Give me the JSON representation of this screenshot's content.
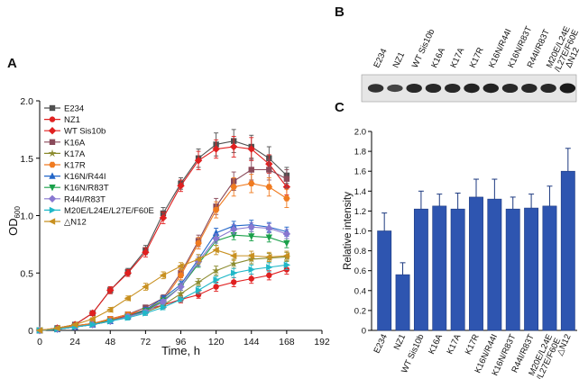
{
  "panels": {
    "a": "A",
    "b": "B",
    "c": "C"
  },
  "blot": {
    "lanes": [
      "E234",
      "NZ1",
      "WT Sis10b",
      "K16A",
      "K17A",
      "K17R",
      "K16N/R44I",
      "K16N/R83T",
      "R44I/R83T",
      "M20E/L24E\n/L27E/F60E",
      "ΔN12"
    ],
    "band_intensity": [
      0.75,
      0.55,
      0.85,
      0.85,
      0.85,
      0.9,
      0.9,
      0.85,
      0.85,
      0.85,
      1.0
    ]
  },
  "colors": {
    "bar": "#2e55b0",
    "bar_edge": "#1d3a80",
    "blot_bg": "#e6e6e6",
    "band": "#1a1a1a"
  },
  "chart_data": [
    {
      "type": "line",
      "panel": "A",
      "xlabel": "Time, h",
      "ylabel": "OD",
      "ylabel_sub": "600",
      "xlim": [
        0,
        192
      ],
      "ylim": [
        0,
        2.0
      ],
      "xticks": [
        0,
        24,
        48,
        72,
        96,
        120,
        144,
        168,
        192
      ],
      "yticks": [
        0,
        0.5,
        1.0,
        1.5,
        2.0
      ],
      "ytick_labels": [
        "0",
        "0.5",
        "1.0",
        "1.5",
        "2.0"
      ],
      "x": [
        0,
        12,
        24,
        36,
        48,
        60,
        72,
        84,
        96,
        108,
        120,
        132,
        144,
        156,
        168
      ],
      "legend": "top-left",
      "series": [
        {
          "name": "E234",
          "color": "#505050",
          "marker": "square",
          "values": [
            0,
            0.02,
            0.05,
            0.15,
            0.35,
            0.51,
            0.7,
            1.02,
            1.28,
            1.5,
            1.62,
            1.65,
            1.6,
            1.5,
            1.35
          ],
          "err": [
            0,
            0.01,
            0.01,
            0.02,
            0.03,
            0.03,
            0.04,
            0.05,
            0.05,
            0.08,
            0.1,
            0.1,
            0.1,
            0.1,
            0.07
          ]
        },
        {
          "name": "NZ1",
          "color": "#e02020",
          "marker": "circle",
          "values": [
            0,
            0.01,
            0.03,
            0.05,
            0.09,
            0.13,
            0.18,
            0.22,
            0.27,
            0.31,
            0.38,
            0.42,
            0.45,
            0.48,
            0.53
          ],
          "err": [
            0,
            0.01,
            0.01,
            0.01,
            0.02,
            0.02,
            0.02,
            0.03,
            0.03,
            0.03,
            0.04,
            0.04,
            0.04,
            0.04,
            0.04
          ]
        },
        {
          "name": "WT Sis10b",
          "color": "#e02020",
          "marker": "diamond",
          "values": [
            0,
            0.02,
            0.05,
            0.15,
            0.35,
            0.5,
            0.68,
            0.98,
            1.26,
            1.48,
            1.58,
            1.6,
            1.58,
            1.45,
            1.25
          ],
          "err": [
            0,
            0.01,
            0.01,
            0.02,
            0.03,
            0.03,
            0.04,
            0.05,
            0.05,
            0.08,
            0.08,
            0.09,
            0.1,
            0.08,
            0.07
          ]
        },
        {
          "name": "K16A",
          "color": "#8a4a5a",
          "marker": "square",
          "values": [
            0,
            0.01,
            0.04,
            0.06,
            0.1,
            0.14,
            0.2,
            0.28,
            0.5,
            0.78,
            1.08,
            1.3,
            1.4,
            1.4,
            1.32
          ],
          "err": [
            0,
            0.01,
            0.01,
            0.01,
            0.02,
            0.02,
            0.02,
            0.03,
            0.04,
            0.05,
            0.07,
            0.08,
            0.09,
            0.09,
            0.08
          ]
        },
        {
          "name": "K17A",
          "color": "#8b8b2e",
          "marker": "star",
          "values": [
            0,
            0.01,
            0.04,
            0.06,
            0.09,
            0.12,
            0.16,
            0.22,
            0.32,
            0.42,
            0.52,
            0.58,
            0.62,
            0.63,
            0.64
          ],
          "err": [
            0,
            0.01,
            0.01,
            0.01,
            0.01,
            0.02,
            0.02,
            0.02,
            0.03,
            0.03,
            0.04,
            0.04,
            0.04,
            0.04,
            0.04
          ]
        },
        {
          "name": "K17R",
          "color": "#f07b20",
          "marker": "hexagon",
          "values": [
            0,
            0.01,
            0.04,
            0.06,
            0.1,
            0.14,
            0.18,
            0.26,
            0.48,
            0.76,
            1.05,
            1.25,
            1.28,
            1.25,
            1.15
          ],
          "err": [
            0,
            0.01,
            0.01,
            0.01,
            0.02,
            0.02,
            0.02,
            0.03,
            0.04,
            0.05,
            0.07,
            0.08,
            0.08,
            0.08,
            0.08
          ]
        },
        {
          "name": "K16N/R44I",
          "color": "#2366c8",
          "marker": "triangle-up",
          "values": [
            0,
            0.01,
            0.03,
            0.05,
            0.08,
            0.12,
            0.18,
            0.28,
            0.4,
            0.62,
            0.85,
            0.91,
            0.92,
            0.9,
            0.86
          ],
          "err": [
            0,
            0.01,
            0.01,
            0.01,
            0.01,
            0.02,
            0.02,
            0.02,
            0.03,
            0.04,
            0.04,
            0.04,
            0.04,
            0.04,
            0.04
          ]
        },
        {
          "name": "K16N/R83T",
          "color": "#1aa04a",
          "marker": "triangle-down",
          "values": [
            0,
            0.01,
            0.03,
            0.05,
            0.08,
            0.12,
            0.17,
            0.26,
            0.38,
            0.58,
            0.78,
            0.83,
            0.82,
            0.81,
            0.76
          ],
          "err": [
            0,
            0.01,
            0.01,
            0.01,
            0.01,
            0.02,
            0.02,
            0.02,
            0.03,
            0.03,
            0.04,
            0.04,
            0.04,
            0.04,
            0.04
          ]
        },
        {
          "name": "R44I/R83T",
          "color": "#8878d0",
          "marker": "diamond",
          "values": [
            0,
            0.01,
            0.03,
            0.05,
            0.08,
            0.12,
            0.16,
            0.25,
            0.38,
            0.6,
            0.8,
            0.88,
            0.9,
            0.89,
            0.84
          ],
          "err": [
            0,
            0.01,
            0.01,
            0.01,
            0.01,
            0.02,
            0.02,
            0.02,
            0.03,
            0.04,
            0.04,
            0.04,
            0.04,
            0.04,
            0.04
          ]
        },
        {
          "name": "M20E/L24E/L27E/F60E",
          "color": "#20b8c8",
          "marker": "triangle-right",
          "values": [
            0,
            0.01,
            0.03,
            0.05,
            0.08,
            0.11,
            0.15,
            0.2,
            0.27,
            0.35,
            0.44,
            0.5,
            0.53,
            0.55,
            0.57
          ],
          "err": [
            0,
            0.01,
            0.01,
            0.01,
            0.01,
            0.02,
            0.02,
            0.02,
            0.02,
            0.03,
            0.03,
            0.04,
            0.04,
            0.04,
            0.04
          ]
        },
        {
          "name": "△N12",
          "color": "#c89020",
          "marker": "triangle-left",
          "values": [
            0,
            0.02,
            0.05,
            0.1,
            0.18,
            0.28,
            0.38,
            0.48,
            0.56,
            0.62,
            0.7,
            0.65,
            0.65,
            0.64,
            0.65
          ],
          "err": [
            0,
            0.01,
            0.01,
            0.01,
            0.02,
            0.02,
            0.03,
            0.03,
            0.03,
            0.04,
            0.04,
            0.04,
            0.04,
            0.04,
            0.04
          ]
        }
      ]
    },
    {
      "type": "bar",
      "panel": "C",
      "ylabel": "Relative intensity",
      "xlabel": "",
      "ylim": [
        0,
        2.0
      ],
      "yticks": [
        0,
        0.2,
        0.4,
        0.6,
        0.8,
        1.0,
        1.2,
        1.4,
        1.6,
        1.8,
        2.0
      ],
      "ytick_labels": [
        "0",
        "0.2",
        "0.4",
        "0.6",
        "0.8",
        "1.0",
        "1.2",
        "1.4",
        "1.6",
        "1.8",
        "2.0"
      ],
      "categories": [
        "E234",
        "NZ1",
        "WT Sis10b",
        "K16A",
        "K17A",
        "K17R",
        "K16N/R44I",
        "K16N/R83T",
        "R44I/R83T",
        "M20E/L24E\n/L27E/F60E",
        "△N12"
      ],
      "values": [
        1.0,
        0.56,
        1.22,
        1.25,
        1.22,
        1.34,
        1.32,
        1.22,
        1.23,
        1.25,
        1.6
      ],
      "err": [
        0.18,
        0.12,
        0.18,
        0.12,
        0.16,
        0.18,
        0.2,
        0.12,
        0.14,
        0.2,
        0.23
      ]
    }
  ]
}
